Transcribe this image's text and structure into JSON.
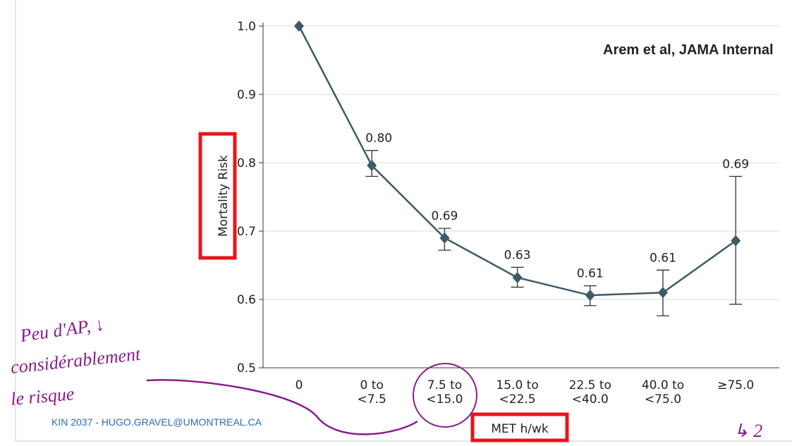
{
  "chart_data": {
    "type": "line",
    "y_axis_label": "Mortality Risk",
    "x_axis_label": "MET h/wk",
    "source": "Arem et al, JAMA Internal",
    "footer": "KIN 2037 - HUGO.GRAVEL@UMONTREAL.CA",
    "handwritten_notes": [
      "Peu d'AP, ↓",
      "considérablement",
      "le risque",
      "↳ 2"
    ],
    "categories": [
      [
        "0"
      ],
      [
        "0 to",
        "<7.5"
      ],
      [
        "7.5 to",
        "<15.0"
      ],
      [
        "15.0 to",
        "<22.5"
      ],
      [
        "22.5 to",
        "<40.0"
      ],
      [
        "40.0 to",
        "<75.0"
      ],
      [
        "≥75.0"
      ]
    ],
    "series": [
      {
        "color": "#3d5a68",
        "values": [
          1.0,
          0.796,
          0.69,
          0.632,
          0.606,
          0.61,
          0.686
        ],
        "value_labels": [
          null,
          "0.80",
          "0.69",
          "0.63",
          "0.61",
          "0.61",
          "0.69"
        ],
        "ci_low": [
          null,
          0.78,
          0.672,
          0.618,
          0.591,
          0.576,
          0.593
        ],
        "ci_high": [
          null,
          0.818,
          0.704,
          0.647,
          0.62,
          0.643,
          0.78
        ]
      }
    ],
    "ylim": [
      0.5,
      1.0
    ],
    "yticks": [
      0.5,
      0.6,
      0.7,
      0.8,
      0.9,
      {
        "value": 1.0,
        "label": "1.0"
      }
    ],
    "grid": true
  }
}
